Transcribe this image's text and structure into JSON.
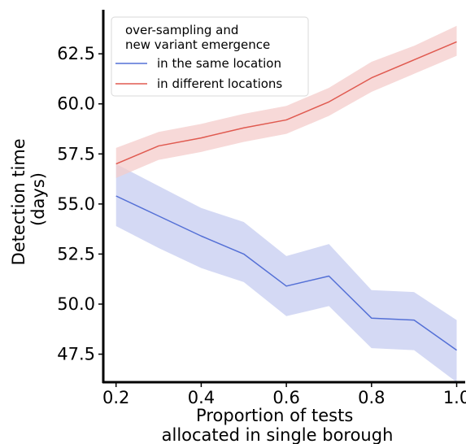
{
  "chart_data": {
    "type": "line",
    "xlabel": [
      "Proportion of tests",
      "allocated in single borough"
    ],
    "ylabel": [
      "Detection time",
      "(days)"
    ],
    "xlim": [
      0.17,
      1.02
    ],
    "ylim": [
      46.1,
      64.7
    ],
    "x_ticks": [
      0.2,
      0.4,
      0.6,
      0.8,
      1.0
    ],
    "x_tick_labels": [
      "0.2",
      "0.4",
      "0.6",
      "0.8",
      "1.0"
    ],
    "y_ticks": [
      47.5,
      50.0,
      52.5,
      55.0,
      57.5,
      60.0,
      62.5
    ],
    "y_tick_labels": [
      "47.5",
      "50.0",
      "52.5",
      "55.0",
      "57.5",
      "60.0",
      "62.5"
    ],
    "grid": false,
    "legend": {
      "title": [
        "over-sampling and",
        "new variant emergence"
      ],
      "placement": "top-left"
    },
    "series": [
      {
        "name": "in the same location",
        "color": "#5470d6",
        "band_color": "#c6ccf0",
        "x": [
          0.2,
          0.3,
          0.4,
          0.5,
          0.6,
          0.7,
          0.8,
          0.9,
          1.0
        ],
        "y": [
          55.4,
          54.4,
          53.4,
          52.5,
          50.9,
          51.4,
          49.3,
          49.2,
          47.7
        ],
        "lower": [
          53.9,
          52.8,
          51.8,
          51.1,
          49.4,
          49.9,
          47.8,
          47.7,
          46.1
        ],
        "upper": [
          57.0,
          55.9,
          54.8,
          54.1,
          52.4,
          53.0,
          50.7,
          50.6,
          49.2
        ]
      },
      {
        "name": "in different locations",
        "color": "#e05a50",
        "band_color": "#f4cccb",
        "x": [
          0.2,
          0.3,
          0.4,
          0.5,
          0.6,
          0.7,
          0.8,
          0.9,
          1.0
        ],
        "y": [
          57.0,
          57.9,
          58.3,
          58.8,
          59.2,
          60.1,
          61.3,
          62.2,
          63.1
        ],
        "lower": [
          56.3,
          57.2,
          57.6,
          58.1,
          58.5,
          59.4,
          60.6,
          61.5,
          62.4
        ],
        "upper": [
          57.8,
          58.6,
          59.0,
          59.5,
          59.9,
          60.8,
          62.1,
          62.9,
          63.9
        ]
      }
    ]
  }
}
